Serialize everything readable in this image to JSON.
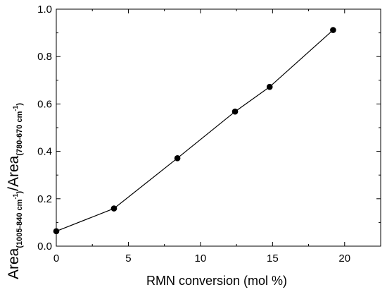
{
  "chart_data": {
    "type": "line",
    "xlabel": "RMN conversion (mol %)",
    "ylabel": {
      "part1": "Area",
      "sub1_pre": "(1005-840 cm",
      "sup1": "-1",
      "sub1_post": ")",
      "slash": "/Area",
      "sub2_pre": "(780-670 cm",
      "sup2": "-1",
      "sub2_post": ")"
    },
    "xlim": [
      0,
      22.5
    ],
    "ylim": [
      0,
      1.0
    ],
    "xticks": [
      "0",
      "5",
      "10",
      "15",
      "20"
    ],
    "yticks": [
      "0.0",
      "0.2",
      "0.4",
      "0.6",
      "0.8",
      "1.0"
    ],
    "x": [
      0,
      4,
      8.4,
      12.4,
      14.8,
      19.2
    ],
    "y": [
      0.063,
      0.159,
      0.371,
      0.568,
      0.672,
      0.912
    ],
    "marker": "filled-circle",
    "line_color": "#000000",
    "grid": false
  }
}
